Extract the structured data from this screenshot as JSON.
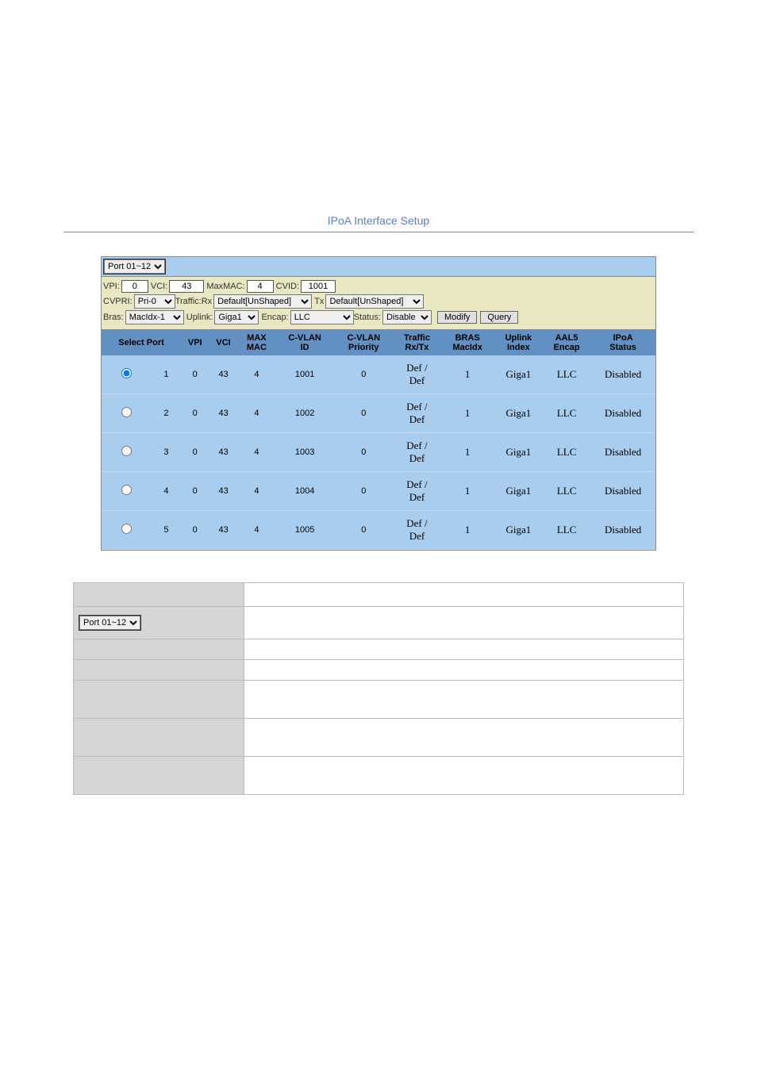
{
  "title": "IPoA Interface Setup",
  "port_select": {
    "value": "Port 01~12"
  },
  "form": {
    "vpi_label": "VPI:",
    "vpi_value": "0",
    "vci_label": "VCI:",
    "vci_value": "43",
    "maxmac_label": "MaxMAC:",
    "maxmac_value": "4",
    "cvid_label": "CVID:",
    "cvid_value": "1001",
    "cvpri_label": "CVPRI:",
    "cvpri_value": "Pri-0",
    "traffic_rx_label": "Traffic:Rx",
    "traffic_rx_value": "Default[UnShaped]",
    "traffic_tx_label": "Tx",
    "traffic_tx_value": "Default[UnShaped]",
    "bras_label": "Bras:",
    "bras_value": "MacIdx-1",
    "uplink_label": "Uplink:",
    "uplink_value": "Giga1",
    "encap_label": "Encap:",
    "encap_value": "LLC",
    "status_label": "Status:",
    "status_value": "Disable",
    "modify_btn": "Modify",
    "query_btn": "Query"
  },
  "columns": {
    "select": "Select",
    "port": "Port",
    "vpi": "VPI",
    "vci": "VCI",
    "maxmac1": "MAX",
    "maxmac2": "MAC",
    "cvlanid1": "C-VLAN",
    "cvlanid2": "ID",
    "cvlanpri1": "C-VLAN",
    "cvlanpri2": "Priority",
    "traffic1": "Traffic",
    "traffic2": "Rx/Tx",
    "bras1": "BRAS",
    "bras2": "MacIdx",
    "uplink1": "Uplink",
    "uplink2": "Index",
    "aal51": "AAL5",
    "aal52": "Encap",
    "ipoa1": "IPoA",
    "ipoa2": "Status"
  },
  "rows": [
    {
      "selected": true,
      "port": "1",
      "vpi": "0",
      "vci": "43",
      "maxmac": "4",
      "cvid": "1001",
      "cvpri": "0",
      "traffic": "Def / Def",
      "bras": "1",
      "uplink": "Giga1",
      "encap": "LLC",
      "status": "Disabled"
    },
    {
      "selected": false,
      "port": "2",
      "vpi": "0",
      "vci": "43",
      "maxmac": "4",
      "cvid": "1002",
      "cvpri": "0",
      "traffic": "Def / Def",
      "bras": "1",
      "uplink": "Giga1",
      "encap": "LLC",
      "status": "Disabled"
    },
    {
      "selected": false,
      "port": "3",
      "vpi": "0",
      "vci": "43",
      "maxmac": "4",
      "cvid": "1003",
      "cvpri": "0",
      "traffic": "Def / Def",
      "bras": "1",
      "uplink": "Giga1",
      "encap": "LLC",
      "status": "Disabled"
    },
    {
      "selected": false,
      "port": "4",
      "vpi": "0",
      "vci": "43",
      "maxmac": "4",
      "cvid": "1004",
      "cvpri": "0",
      "traffic": "Def / Def",
      "bras": "1",
      "uplink": "Giga1",
      "encap": "LLC",
      "status": "Disabled"
    },
    {
      "selected": false,
      "port": "5",
      "vpi": "0",
      "vci": "43",
      "maxmac": "4",
      "cvid": "1005",
      "cvpri": "0",
      "traffic": "Def / Def",
      "bras": "1",
      "uplink": "Giga1",
      "encap": "LLC",
      "status": "Disabled"
    }
  ],
  "desc_port_select": "Port 01~12",
  "desc_rows": 7,
  "colors": {
    "title": "#5a7fc4",
    "panel_bg": "#a9cdee",
    "form_bg": "#e8e7c2",
    "header_bg": "#6290c3",
    "row_bg": "#a9cdee",
    "desc_left_bg": "#d6d4d4",
    "desc_border": "#bbbbbb"
  }
}
